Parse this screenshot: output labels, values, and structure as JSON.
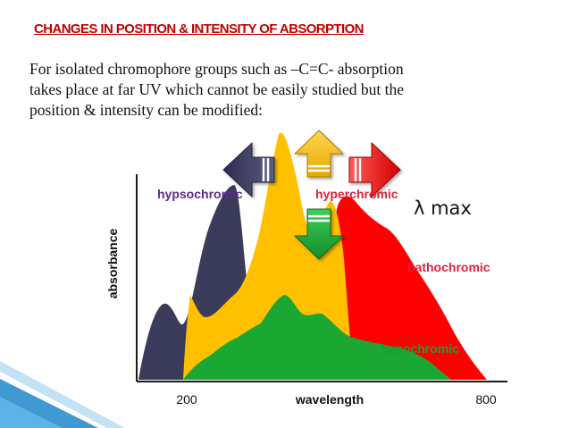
{
  "slide": {
    "title": "CHANGES IN POSITION & INTENSITY OF ABSORPTION",
    "paragraph": [
      "For isolated chromophore groups such as –C=C- absorption",
      "takes place at far UV which cannot be easily studied but the",
      "position & intensity can be modified:"
    ]
  },
  "diagram": {
    "y_axis_label": "absorbance",
    "x_axis_label": "wavelength",
    "x_tick_left": "200",
    "x_tick_right": "800",
    "labels": {
      "hypsochromic": "hypsochromic",
      "hyperchromic": "hyperchromic",
      "lambda_max": "λ max",
      "bathochromic": "bathochromic",
      "hypochromic": "hypochromic"
    },
    "colors": {
      "hypsochromic": "#3b3b5c",
      "original": "#ffc000",
      "bathochromic": "#ff0000",
      "hypochromic": "#1aa832",
      "label_purple": "#5a2a8c",
      "label_red": "#e0213a",
      "label_green": "#1e9b3a",
      "accent_blue": "#1f86c9"
    },
    "arrows": {
      "left": "arrow-left-icon",
      "up": "arrow-up-icon",
      "right": "arrow-right-icon",
      "down": "arrow-down-icon"
    }
  }
}
